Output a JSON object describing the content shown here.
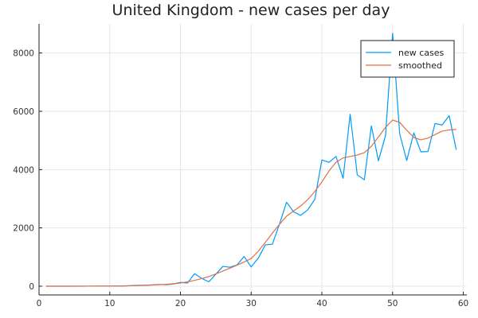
{
  "chart_data": {
    "type": "line",
    "title": "United Kingdom - new cases per day",
    "xlabel": "",
    "ylabel": "",
    "xlim": [
      0,
      60.5
    ],
    "ylim": [
      -300,
      9000
    ],
    "xticks": [
      0,
      10,
      20,
      30,
      40,
      50,
      60
    ],
    "yticks": [
      0,
      2000,
      4000,
      6000,
      8000
    ],
    "xtick_labels": [
      "0",
      "10",
      "20",
      "30",
      "40",
      "50",
      "60"
    ],
    "ytick_labels": [
      "0",
      "2000",
      "4000",
      "6000",
      "8000"
    ],
    "grid": true,
    "legend_position": "top-right",
    "series": [
      {
        "name": "new cases",
        "color": "#009af9",
        "x": [
          1,
          2,
          3,
          4,
          5,
          6,
          7,
          8,
          9,
          10,
          11,
          12,
          13,
          14,
          15,
          16,
          17,
          18,
          19,
          20,
          21,
          22,
          23,
          24,
          25,
          26,
          27,
          28,
          29,
          30,
          31,
          32,
          33,
          34,
          35,
          36,
          37,
          38,
          39,
          40,
          41,
          42,
          43,
          44,
          45,
          46,
          47,
          48,
          49,
          50,
          51,
          52,
          53,
          54,
          55,
          56,
          57,
          58,
          59
        ],
        "values": [
          0,
          0,
          0,
          0,
          0,
          0,
          2,
          2,
          3,
          5,
          5,
          7,
          20,
          30,
          35,
          45,
          60,
          50,
          75,
          130,
          110,
          430,
          270,
          150,
          410,
          680,
          650,
          730,
          1020,
          660,
          960,
          1420,
          1440,
          2130,
          2880,
          2550,
          2430,
          2620,
          2980,
          4330,
          4250,
          4450,
          3700,
          5900,
          3820,
          3650,
          5500,
          4300,
          5170,
          8680,
          5230,
          4310,
          5260,
          4610,
          4620,
          5580,
          5530,
          5850,
          4680
        ]
      },
      {
        "name": "smoothed",
        "color": "#e26f46",
        "x": [
          1,
          2,
          3,
          4,
          5,
          6,
          7,
          8,
          9,
          10,
          11,
          12,
          13,
          14,
          15,
          16,
          17,
          18,
          19,
          20,
          21,
          22,
          23,
          24,
          25,
          26,
          27,
          28,
          29,
          30,
          31,
          32,
          33,
          34,
          35,
          36,
          37,
          38,
          39,
          40,
          41,
          42,
          43,
          44,
          45,
          46,
          47,
          48,
          49,
          50,
          51,
          52,
          53,
          54,
          55,
          56,
          57,
          58,
          59
        ],
        "values": [
          0,
          0,
          0,
          0,
          1,
          1,
          2,
          3,
          4,
          5,
          7,
          10,
          15,
          22,
          30,
          40,
          52,
          65,
          85,
          110,
          150,
          200,
          260,
          330,
          420,
          520,
          620,
          720,
          830,
          950,
          1200,
          1500,
          1820,
          2120,
          2400,
          2580,
          2750,
          2970,
          3250,
          3580,
          3950,
          4250,
          4400,
          4450,
          4500,
          4580,
          4800,
          5120,
          5450,
          5700,
          5620,
          5350,
          5100,
          5020,
          5080,
          5200,
          5320,
          5360,
          5380
        ]
      }
    ]
  }
}
